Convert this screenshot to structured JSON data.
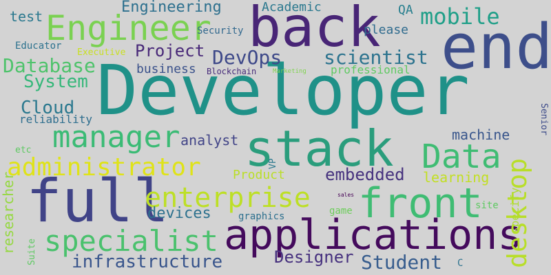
{
  "words": {
    "developer": {
      "text": "Developer",
      "color": "#1f9188"
    },
    "end": {
      "text": "end",
      "color": "#3d4e8a"
    },
    "back": {
      "text": "back",
      "color": "#482576"
    },
    "full": {
      "text": "full",
      "color": "#404387"
    },
    "stack": {
      "text": "stack",
      "color": "#2a9d7c"
    },
    "applications": {
      "text": "applications",
      "color": "#440a5c"
    },
    "front": {
      "text": "front",
      "color": "#3fbc73"
    },
    "engineer": {
      "text": "Engineer",
      "color": "#7ad151"
    },
    "manager": {
      "text": "manager",
      "color": "#3bbb75"
    },
    "administrator": {
      "text": "administrator",
      "color": "#dfe318"
    },
    "data": {
      "text": "Data",
      "color": "#3fbc73"
    },
    "desktop": {
      "text": "desktop",
      "color": "#b8de29"
    },
    "enterprise": {
      "text": "enterprise",
      "color": "#bddf26"
    },
    "specialist": {
      "text": "specialist",
      "color": "#4ac16d"
    },
    "mobile": {
      "text": "mobile",
      "color": "#1f9f88"
    },
    "devops": {
      "text": "DevOps",
      "color": "#3e4989"
    },
    "scientist": {
      "text": "scientist",
      "color": "#2c738e"
    },
    "infrastructure": {
      "text": "infrastructure",
      "color": "#39558c"
    },
    "student": {
      "text": "Student",
      "color": "#365c8d"
    },
    "designer": {
      "text": "Designer",
      "color": "#46307e"
    },
    "database": {
      "text": "Database",
      "color": "#4ec36b"
    },
    "system": {
      "text": "System",
      "color": "#35b779"
    },
    "cloud": {
      "text": "Cloud",
      "color": "#2a788e"
    },
    "project": {
      "text": "Project",
      "color": "#482878"
    },
    "engineering": {
      "text": "Engineering",
      "color": "#2d708e"
    },
    "embedded": {
      "text": "embedded",
      "color": "#46327e"
    },
    "machine": {
      "text": "machine",
      "color": "#39568c"
    },
    "learning": {
      "text": "learning",
      "color": "#c2df23"
    },
    "devices": {
      "text": "devices",
      "color": "#2d718e"
    },
    "analyst": {
      "text": "analyst",
      "color": "#414487"
    },
    "product": {
      "text": "Product",
      "color": "#bade28"
    },
    "academic": {
      "text": "Academic",
      "color": "#2a788e"
    },
    "qa": {
      "text": "QA",
      "color": "#277f8e"
    },
    "please": {
      "text": "please",
      "color": "#2f6b8e"
    },
    "test": {
      "text": "test",
      "color": "#2a788e"
    },
    "business": {
      "text": "business",
      "color": "#3b528b"
    },
    "professional": {
      "text": "professional",
      "color": "#5ec962"
    },
    "reliability": {
      "text": "reliability",
      "color": "#2e6e8e"
    },
    "researcher": {
      "text": "researcher",
      "color": "#95d840"
    },
    "specify": {
      "text": "specify",
      "color": "#addc30"
    },
    "senior": {
      "text": "Senior",
      "color": "#3e4c8a"
    },
    "security": {
      "text": "Security",
      "color": "#31688e"
    },
    "educator": {
      "text": "Educator",
      "color": "#2c728e"
    },
    "executive": {
      "text": "Executive",
      "color": "#c8e020"
    },
    "blockchain": {
      "text": "Blockchain",
      "color": "#472c7a"
    },
    "marketing": {
      "text": "Marketing",
      "color": "#7fd34e"
    },
    "etc": {
      "text": "etc",
      "color": "#5ec962"
    },
    "vp": {
      "text": "VP",
      "color": "#2a788e"
    },
    "graphics": {
      "text": "graphics",
      "color": "#2d708e"
    },
    "game": {
      "text": "game",
      "color": "#6ccd5a"
    },
    "site": {
      "text": "site",
      "color": "#5ec962"
    },
    "sales": {
      "text": "sales",
      "color": "#440154"
    },
    "suite": {
      "text": "Suite",
      "color": "#5ec962"
    },
    "c": {
      "text": "C",
      "color": "#2c728e"
    }
  }
}
